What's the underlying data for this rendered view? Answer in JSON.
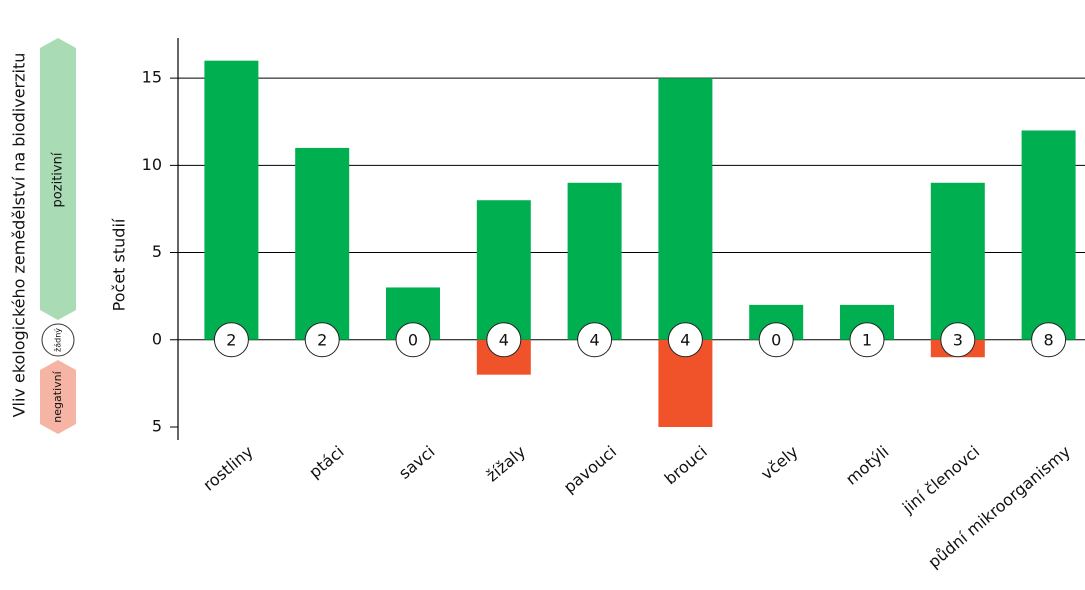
{
  "chart_data": {
    "type": "bar",
    "title": "Vliv ekologického zemědělství na biodiverzitu",
    "y_label": "Počet studií",
    "categories": [
      "rostliny",
      "ptáci",
      "savci",
      "žížaly",
      "pavouci",
      "brouci",
      "včely",
      "motýli",
      "jiní členovci",
      "půdní mikroorganismy"
    ],
    "series": [
      {
        "name": "pozitivní",
        "color": "#00b050",
        "values": [
          16,
          11,
          3,
          8,
          9,
          15,
          2,
          2,
          9,
          12
        ]
      },
      {
        "name": "negativní",
        "color": "#f0522a",
        "values": [
          0,
          0,
          0,
          -2,
          0,
          -5,
          0,
          0,
          -1,
          0
        ]
      },
      {
        "name": "žádný",
        "color": "#ffffff",
        "values": [
          2,
          2,
          0,
          4,
          4,
          4,
          0,
          1,
          3,
          8
        ]
      }
    ],
    "ylim": [
      -5,
      17.3
    ],
    "yticks": [
      {
        "value": -5,
        "label": "5"
      },
      0,
      5,
      10,
      15
    ],
    "grid": true
  }
}
